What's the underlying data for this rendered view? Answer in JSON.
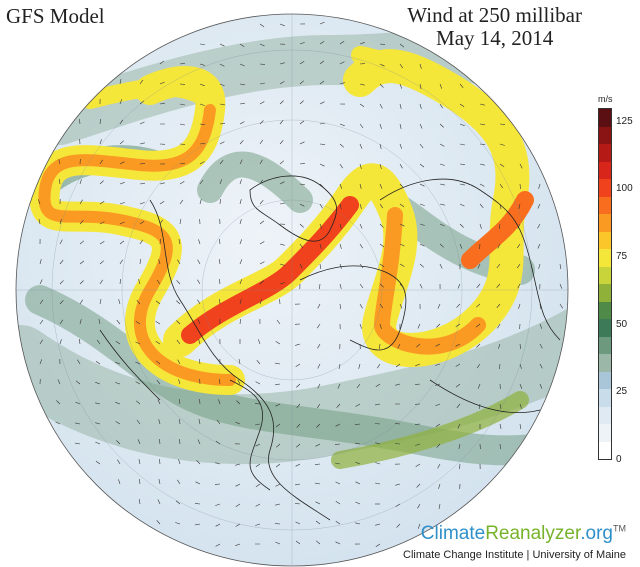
{
  "header": {
    "model": "GFS Model",
    "title_line1": "Wind at 250 millibar",
    "title_line2": "May 14, 2014"
  },
  "legend": {
    "unit": "m/s",
    "ticks": [
      "125",
      "100",
      "75",
      "50",
      "25",
      "0"
    ],
    "tick_values": [
      125,
      100,
      75,
      50,
      25,
      0
    ],
    "range": [
      0,
      130
    ],
    "colors": [
      "#5c0f12",
      "#8a1414",
      "#b51a16",
      "#d8261a",
      "#f0421c",
      "#f96e1e",
      "#fb9a22",
      "#fbc62a",
      "#f5e63a",
      "#c9d43a",
      "#8fb13a",
      "#4f8a48",
      "#3d7a58",
      "#6d9a7e",
      "#9bb7a8",
      "#a9c6d8",
      "#c8dcea",
      "#dfeaf3",
      "#eef3f8",
      "#ffffff"
    ]
  },
  "branding": {
    "name_part1": "Climate",
    "name_part2": "Reanalyzer",
    "name_part3": ".org",
    "tm": "TM",
    "credit": "Climate Change Institute | University of Maine"
  }
}
